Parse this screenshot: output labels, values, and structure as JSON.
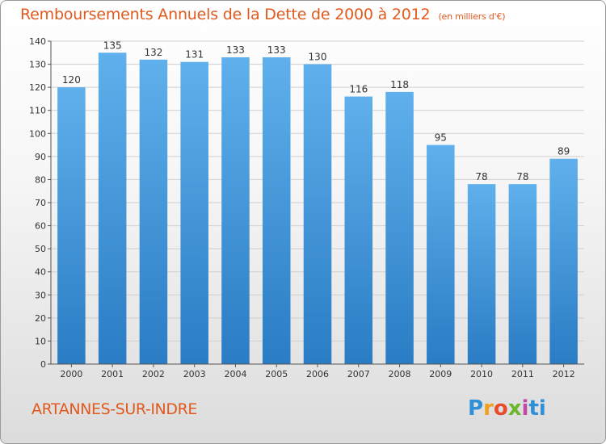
{
  "header": {
    "title": "Remboursements Annuels de la Dette de 2000 à 2012",
    "unit": "(en milliers d'€)"
  },
  "footer": {
    "commune": "ARTANNES-SUR-INDRE",
    "logo": [
      "P",
      "r",
      "o",
      "x",
      "i",
      "t",
      "i"
    ]
  },
  "colors": {
    "title": "#e05a1e",
    "bar_top": "#5fb0ec",
    "bar_bottom": "#2a7cc4",
    "grid": "#cfcfcf",
    "axis_text": "#333333"
  },
  "chart_data": {
    "type": "bar",
    "title": "Remboursements Annuels de la Dette de 2000 à 2012",
    "xlabel": "",
    "ylabel": "",
    "categories": [
      "2000",
      "2001",
      "2002",
      "2003",
      "2004",
      "2005",
      "2006",
      "2007",
      "2008",
      "2009",
      "2010",
      "2011",
      "2012"
    ],
    "values": [
      120,
      135,
      132,
      131,
      133,
      133,
      130,
      116,
      118,
      95,
      78,
      78,
      89
    ],
    "ylim": [
      0,
      140
    ],
    "yticks": [
      0,
      10,
      20,
      30,
      40,
      50,
      60,
      70,
      80,
      90,
      100,
      110,
      120,
      130,
      140
    ],
    "grid": true
  }
}
